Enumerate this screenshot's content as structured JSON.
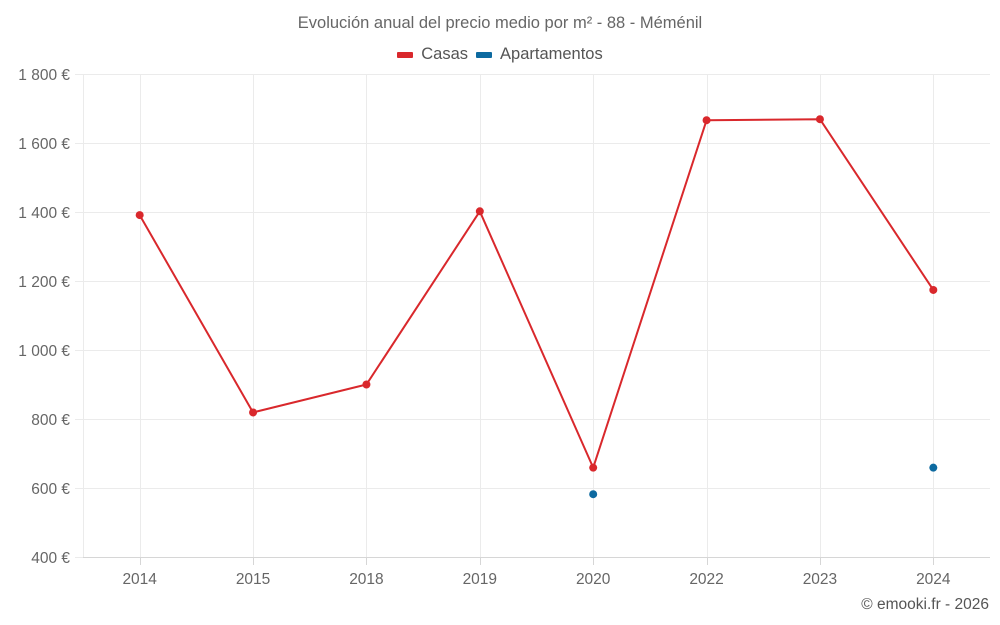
{
  "title": "Evolución anual del precio medio por m² - 88 - Méménil",
  "legend": [
    {
      "label": "Casas",
      "color": "#d9282c"
    },
    {
      "label": "Apartamentos",
      "color": "#0d6aa0"
    }
  ],
  "credits": "© emooki.fr - 2026",
  "y_axis": {
    "ticks": [
      "400 €",
      "600 €",
      "800 €",
      "1 000 €",
      "1 200 €",
      "1 400 €",
      "1 600 €",
      "1 800 €"
    ]
  },
  "x_axis": {
    "ticks": [
      "2014",
      "2015",
      "2018",
      "2019",
      "2020",
      "2022",
      "2023",
      "2024"
    ]
  },
  "chart_data": {
    "type": "line",
    "title": "Evolución anual del precio medio por m² - 88 - Méménil",
    "xlabel": "",
    "ylabel": "",
    "categories": [
      "2014",
      "2015",
      "2018",
      "2019",
      "2020",
      "2022",
      "2023",
      "2024"
    ],
    "series": [
      {
        "name": "Casas",
        "color": "#d9282c",
        "values": [
          1391,
          819,
          900,
          1402,
          659,
          1666,
          1669,
          1174
        ]
      },
      {
        "name": "Apartamentos",
        "color": "#0d6aa0",
        "values": [
          null,
          null,
          null,
          null,
          582,
          null,
          null,
          659
        ]
      }
    ],
    "ylim": [
      400,
      1800
    ],
    "yticks": [
      400,
      600,
      800,
      1000,
      1200,
      1400,
      1600,
      1800
    ],
    "ytick_format": "{v} €",
    "grid": true,
    "legend_position": "top"
  }
}
